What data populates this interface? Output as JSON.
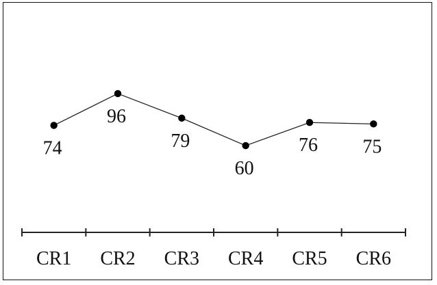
{
  "chart_data": {
    "type": "line",
    "categories": [
      "CR1",
      "CR2",
      "CR3",
      "CR4",
      "CR5",
      "CR6"
    ],
    "series": [
      {
        "values": [
          74,
          96,
          79,
          60,
          76,
          75
        ]
      }
    ],
    "data_labels": [
      "74",
      "96",
      "79",
      "60",
      "76",
      "75"
    ],
    "title": "",
    "xlabel": "",
    "ylabel": "",
    "ylim": [
      0,
      130
    ],
    "grid": false,
    "legend": "none"
  }
}
